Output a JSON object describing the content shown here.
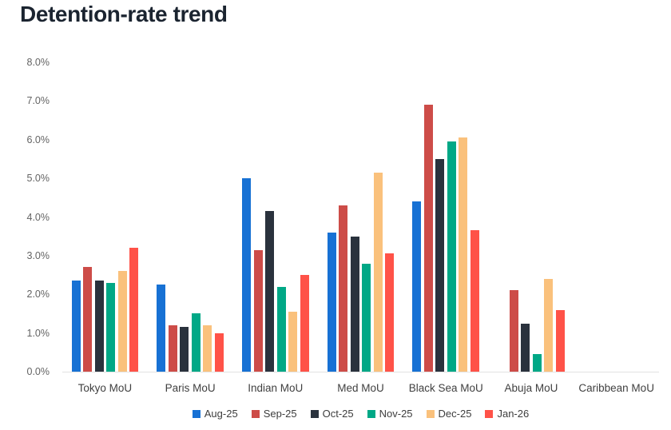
{
  "title": "Detention-rate trend",
  "chart_data": {
    "type": "bar",
    "title": "Detention-rate trend",
    "categories": [
      "Tokyo MoU",
      "Paris MoU",
      "Indian MoU",
      "Med MoU",
      "Black Sea MoU",
      "Abuja MoU",
      "Caribbean MoU"
    ],
    "series": [
      {
        "name": "Aug-25",
        "color": "#1771d4",
        "values": [
          2.35,
          2.25,
          5.0,
          3.6,
          4.4,
          0,
          0
        ]
      },
      {
        "name": "Sep-25",
        "color": "#cd4c48",
        "values": [
          2.7,
          1.2,
          3.15,
          4.3,
          6.9,
          2.1,
          0
        ]
      },
      {
        "name": "Oct-25",
        "color": "#2a323d",
        "values": [
          2.35,
          1.15,
          4.15,
          3.5,
          5.5,
          1.25,
          0
        ]
      },
      {
        "name": "Nov-25",
        "color": "#00a886",
        "values": [
          2.3,
          1.5,
          2.2,
          2.8,
          5.95,
          0.45,
          0
        ]
      },
      {
        "name": "Dec-25",
        "color": "#fac17c",
        "values": [
          2.6,
          1.2,
          1.55,
          5.15,
          6.05,
          2.4,
          0
        ]
      },
      {
        "name": "Jan-26",
        "color": "#ff5248",
        "values": [
          3.2,
          1.0,
          2.5,
          3.05,
          3.65,
          1.6,
          0
        ]
      }
    ],
    "ylim": [
      0,
      8
    ],
    "ytick_values": [
      8,
      7,
      6,
      5,
      4,
      3,
      2,
      1,
      0
    ],
    "yticks": [
      "8.0%",
      "7.0%",
      "6.0%",
      "5.0%",
      "4.0%",
      "3.0%",
      "2.0%",
      "1.0%",
      "0.0%"
    ],
    "grid": false,
    "legend_position": "bottom"
  },
  "colors": {
    "title_text": "#1b2430",
    "axis_tick_text": "#636363",
    "category_text": "#404040",
    "legend_text": "#3d3d3d",
    "baseline": "#e2e2e2",
    "background": "#ffffff"
  }
}
